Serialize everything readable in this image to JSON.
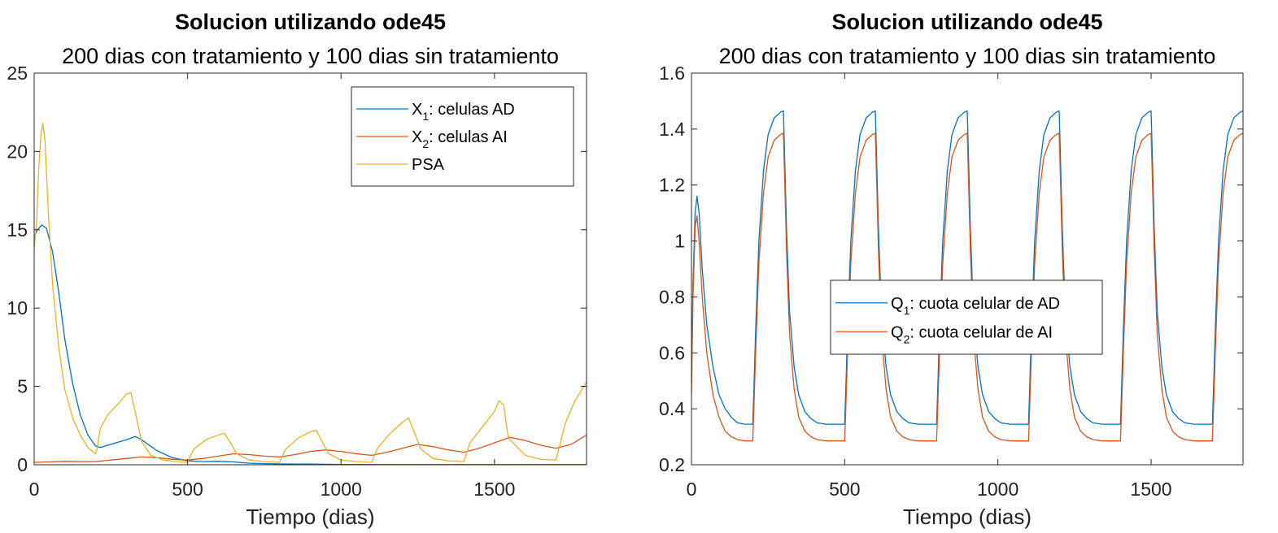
{
  "chart_data": [
    {
      "type": "line",
      "title": "Solucion utilizando ode45",
      "subtitle": "200 dias con tratamiento y 100 dias sin tratamiento",
      "xlabel": "Tiempo (dias)",
      "ylabel": "",
      "xlim": [
        0,
        1800
      ],
      "ylim": [
        0,
        25
      ],
      "xticks": [
        0,
        500,
        1000,
        1500
      ],
      "yticks": [
        0,
        5,
        10,
        15,
        20,
        25
      ],
      "grid": false,
      "legend_position": "top-right",
      "series": [
        {
          "name": "X1: celulas AD",
          "legend_main": "X",
          "legend_sub": "1",
          "legend_rest": ": celulas AD",
          "color": "#0072BD",
          "x": [
            0,
            10,
            25,
            40,
            60,
            80,
            100,
            125,
            150,
            175,
            200,
            215,
            250,
            300,
            330,
            350,
            400,
            450,
            500,
            550,
            600,
            650,
            700,
            800,
            900,
            1000,
            1200,
            1400,
            1600,
            1800
          ],
          "y": [
            14.5,
            15.0,
            15.3,
            15.1,
            13.6,
            11.0,
            8.0,
            5.2,
            3.2,
            1.9,
            1.2,
            1.1,
            1.3,
            1.6,
            1.8,
            1.6,
            0.9,
            0.45,
            0.25,
            0.2,
            0.22,
            0.18,
            0.1,
            0.05,
            0.04,
            0.02,
            0.01,
            0.01,
            0.01,
            0.01
          ]
        },
        {
          "name": "X2: celulas AI",
          "legend_main": "X",
          "legend_sub": "2",
          "legend_rest": ": celulas AI",
          "color": "#D95319",
          "x": [
            0,
            50,
            100,
            150,
            200,
            250,
            300,
            350,
            400,
            450,
            500,
            550,
            600,
            650,
            700,
            750,
            800,
            850,
            900,
            950,
            1000,
            1050,
            1100,
            1150,
            1200,
            1250,
            1300,
            1350,
            1400,
            1450,
            1500,
            1550,
            1600,
            1650,
            1700,
            1750,
            1800
          ],
          "y": [
            0.15,
            0.18,
            0.22,
            0.2,
            0.2,
            0.3,
            0.4,
            0.5,
            0.45,
            0.35,
            0.3,
            0.4,
            0.55,
            0.7,
            0.65,
            0.55,
            0.5,
            0.65,
            0.85,
            0.95,
            0.85,
            0.7,
            0.6,
            0.8,
            1.05,
            1.3,
            1.15,
            0.95,
            0.8,
            1.05,
            1.4,
            1.75,
            1.55,
            1.25,
            1.05,
            1.3,
            1.9
          ]
        },
        {
          "name": "PSA",
          "legend_main": "PSA",
          "legend_sub": "",
          "legend_rest": "",
          "color": "#EDB120",
          "x": [
            0,
            8,
            15,
            22,
            28,
            35,
            45,
            60,
            80,
            100,
            125,
            150,
            175,
            200,
            205,
            215,
            240,
            270,
            300,
            315,
            330,
            350,
            380,
            420,
            460,
            500,
            505,
            520,
            560,
            600,
            620,
            640,
            660,
            700,
            750,
            800,
            805,
            820,
            860,
            900,
            920,
            940,
            960,
            1000,
            1050,
            1100,
            1105,
            1120,
            1160,
            1200,
            1220,
            1240,
            1260,
            1300,
            1350,
            1400,
            1405,
            1420,
            1460,
            1500,
            1515,
            1530,
            1545,
            1600,
            1650,
            1700,
            1710,
            1730,
            1760,
            1800
          ],
          "y": [
            13.8,
            15.5,
            19.0,
            21.0,
            21.8,
            20.8,
            16.5,
            11.5,
            7.5,
            4.8,
            3.0,
            1.9,
            1.1,
            0.7,
            1.0,
            2.3,
            3.2,
            3.8,
            4.5,
            4.6,
            3.3,
            1.5,
            0.6,
            0.3,
            0.2,
            0.15,
            0.4,
            1.0,
            1.6,
            1.9,
            2.0,
            1.4,
            0.7,
            0.3,
            0.2,
            0.15,
            0.4,
            1.0,
            1.7,
            2.1,
            2.2,
            1.4,
            0.7,
            0.3,
            0.2,
            0.15,
            0.4,
            1.1,
            2.0,
            2.7,
            3.0,
            2.0,
            1.0,
            0.4,
            0.25,
            0.2,
            0.5,
            1.4,
            2.4,
            3.4,
            4.1,
            3.8,
            1.7,
            0.6,
            0.35,
            0.3,
            1.0,
            2.6,
            4.0,
            5.3
          ]
        }
      ]
    },
    {
      "type": "line",
      "title": "Solucion utilizando ode45",
      "subtitle": "200 dias con tratamiento y 100 dias sin tratamiento",
      "xlabel": "Tiempo (dias)",
      "ylabel": "",
      "xlim": [
        0,
        1800
      ],
      "ylim": [
        0.2,
        1.6
      ],
      "xticks": [
        0,
        500,
        1000,
        1500
      ],
      "yticks": [
        0.2,
        0.4,
        0.6,
        0.8,
        1,
        1.2,
        1.4,
        1.6
      ],
      "ytick_labels": [
        "0.2",
        "0.4",
        "0.6",
        "0.8",
        "1",
        "1.2",
        "1.4",
        "1.6"
      ],
      "grid": false,
      "legend_position": "center",
      "series": [
        {
          "name": "Q1: cuota celular de AD",
          "legend_main": "Q",
          "legend_sub": "1",
          "legend_rest": ": cuota celular de AD",
          "color": "#0072BD",
          "x": [
            0,
            5,
            12,
            18,
            25,
            35,
            50,
            70,
            90,
            110,
            130,
            150,
            175,
            200,
            203,
            210,
            220,
            235,
            250,
            270,
            290,
            300,
            303,
            310,
            320,
            335,
            350,
            370,
            390,
            410,
            440,
            470,
            500,
            503,
            510,
            520,
            535,
            550,
            570,
            590,
            600,
            603,
            610,
            620,
            635,
            650,
            670,
            690,
            710,
            740,
            770,
            800,
            803,
            810,
            820,
            835,
            850,
            870,
            890,
            900,
            903,
            910,
            920,
            935,
            950,
            970,
            990,
            1010,
            1040,
            1070,
            1100,
            1103,
            1110,
            1120,
            1135,
            1150,
            1170,
            1190,
            1200,
            1203,
            1210,
            1220,
            1235,
            1250,
            1270,
            1290,
            1310,
            1340,
            1370,
            1400,
            1403,
            1410,
            1420,
            1435,
            1450,
            1470,
            1490,
            1500,
            1503,
            1510,
            1520,
            1535,
            1550,
            1570,
            1590,
            1610,
            1640,
            1670,
            1700,
            1703,
            1710,
            1720,
            1735,
            1750,
            1770,
            1790,
            1800
          ],
          "y": [
            0.5,
            0.85,
            1.1,
            1.16,
            1.1,
            0.9,
            0.7,
            0.55,
            0.45,
            0.4,
            0.37,
            0.35,
            0.345,
            0.345,
            0.45,
            0.7,
            1.0,
            1.25,
            1.38,
            1.44,
            1.46,
            1.465,
            1.35,
            1.05,
            0.75,
            0.55,
            0.45,
            0.39,
            0.365,
            0.35,
            0.345,
            0.345,
            0.345,
            0.45,
            0.7,
            1.0,
            1.25,
            1.38,
            1.44,
            1.46,
            1.465,
            1.35,
            1.05,
            0.75,
            0.55,
            0.45,
            0.39,
            0.365,
            0.35,
            0.345,
            0.345,
            0.345,
            0.45,
            0.7,
            1.0,
            1.25,
            1.38,
            1.44,
            1.46,
            1.465,
            1.35,
            1.05,
            0.75,
            0.55,
            0.45,
            0.39,
            0.365,
            0.35,
            0.345,
            0.345,
            0.345,
            0.45,
            0.7,
            1.0,
            1.25,
            1.38,
            1.44,
            1.46,
            1.465,
            1.35,
            1.05,
            0.75,
            0.55,
            0.45,
            0.39,
            0.365,
            0.35,
            0.345,
            0.345,
            0.345,
            0.45,
            0.7,
            1.0,
            1.25,
            1.38,
            1.44,
            1.46,
            1.465,
            1.35,
            1.05,
            0.75,
            0.55,
            0.45,
            0.39,
            0.365,
            0.35,
            0.345,
            0.345,
            0.345,
            0.45,
            0.7,
            1.0,
            1.25,
            1.38,
            1.44,
            1.46,
            1.465
          ]
        },
        {
          "name": "Q2: cuota celular de AI",
          "legend_main": "Q",
          "legend_sub": "2",
          "legend_rest": ": cuota celular de AI",
          "color": "#D95319",
          "x": [
            0,
            5,
            12,
            18,
            25,
            35,
            50,
            70,
            90,
            110,
            130,
            150,
            175,
            200,
            203,
            210,
            220,
            235,
            250,
            270,
            290,
            300,
            303,
            310,
            320,
            335,
            350,
            370,
            390,
            410,
            440,
            470,
            500,
            503,
            510,
            520,
            535,
            550,
            570,
            590,
            600,
            603,
            610,
            620,
            635,
            650,
            670,
            690,
            710,
            740,
            770,
            800,
            803,
            810,
            820,
            835,
            850,
            870,
            890,
            900,
            903,
            910,
            920,
            935,
            950,
            970,
            990,
            1010,
            1040,
            1070,
            1100,
            1103,
            1110,
            1120,
            1135,
            1150,
            1170,
            1190,
            1200,
            1203,
            1210,
            1220,
            1235,
            1250,
            1270,
            1290,
            1310,
            1340,
            1370,
            1400,
            1403,
            1410,
            1420,
            1435,
            1450,
            1470,
            1490,
            1500,
            1503,
            1510,
            1520,
            1535,
            1550,
            1570,
            1590,
            1610,
            1640,
            1670,
            1700,
            1703,
            1710,
            1720,
            1735,
            1750,
            1770,
            1790,
            1800
          ],
          "y": [
            0.45,
            0.8,
            1.05,
            1.09,
            1.0,
            0.8,
            0.6,
            0.45,
            0.37,
            0.32,
            0.3,
            0.29,
            0.285,
            0.285,
            0.38,
            0.62,
            0.92,
            1.17,
            1.3,
            1.36,
            1.38,
            1.385,
            1.27,
            0.97,
            0.67,
            0.47,
            0.37,
            0.32,
            0.3,
            0.29,
            0.285,
            0.285,
            0.285,
            0.38,
            0.62,
            0.92,
            1.17,
            1.3,
            1.36,
            1.38,
            1.385,
            1.27,
            0.97,
            0.67,
            0.47,
            0.37,
            0.32,
            0.3,
            0.29,
            0.285,
            0.285,
            0.285,
            0.38,
            0.62,
            0.92,
            1.17,
            1.3,
            1.36,
            1.38,
            1.385,
            1.27,
            0.97,
            0.67,
            0.47,
            0.37,
            0.32,
            0.3,
            0.29,
            0.285,
            0.285,
            0.285,
            0.38,
            0.62,
            0.92,
            1.17,
            1.3,
            1.36,
            1.38,
            1.385,
            1.27,
            0.97,
            0.67,
            0.47,
            0.37,
            0.32,
            0.3,
            0.29,
            0.285,
            0.285,
            0.285,
            0.38,
            0.62,
            0.92,
            1.17,
            1.3,
            1.36,
            1.38,
            1.385,
            1.27,
            0.97,
            0.67,
            0.47,
            0.37,
            0.32,
            0.3,
            0.29,
            0.285,
            0.285,
            0.285,
            0.38,
            0.62,
            0.92,
            1.17,
            1.3,
            1.36,
            1.38,
            1.385
          ]
        }
      ]
    }
  ]
}
